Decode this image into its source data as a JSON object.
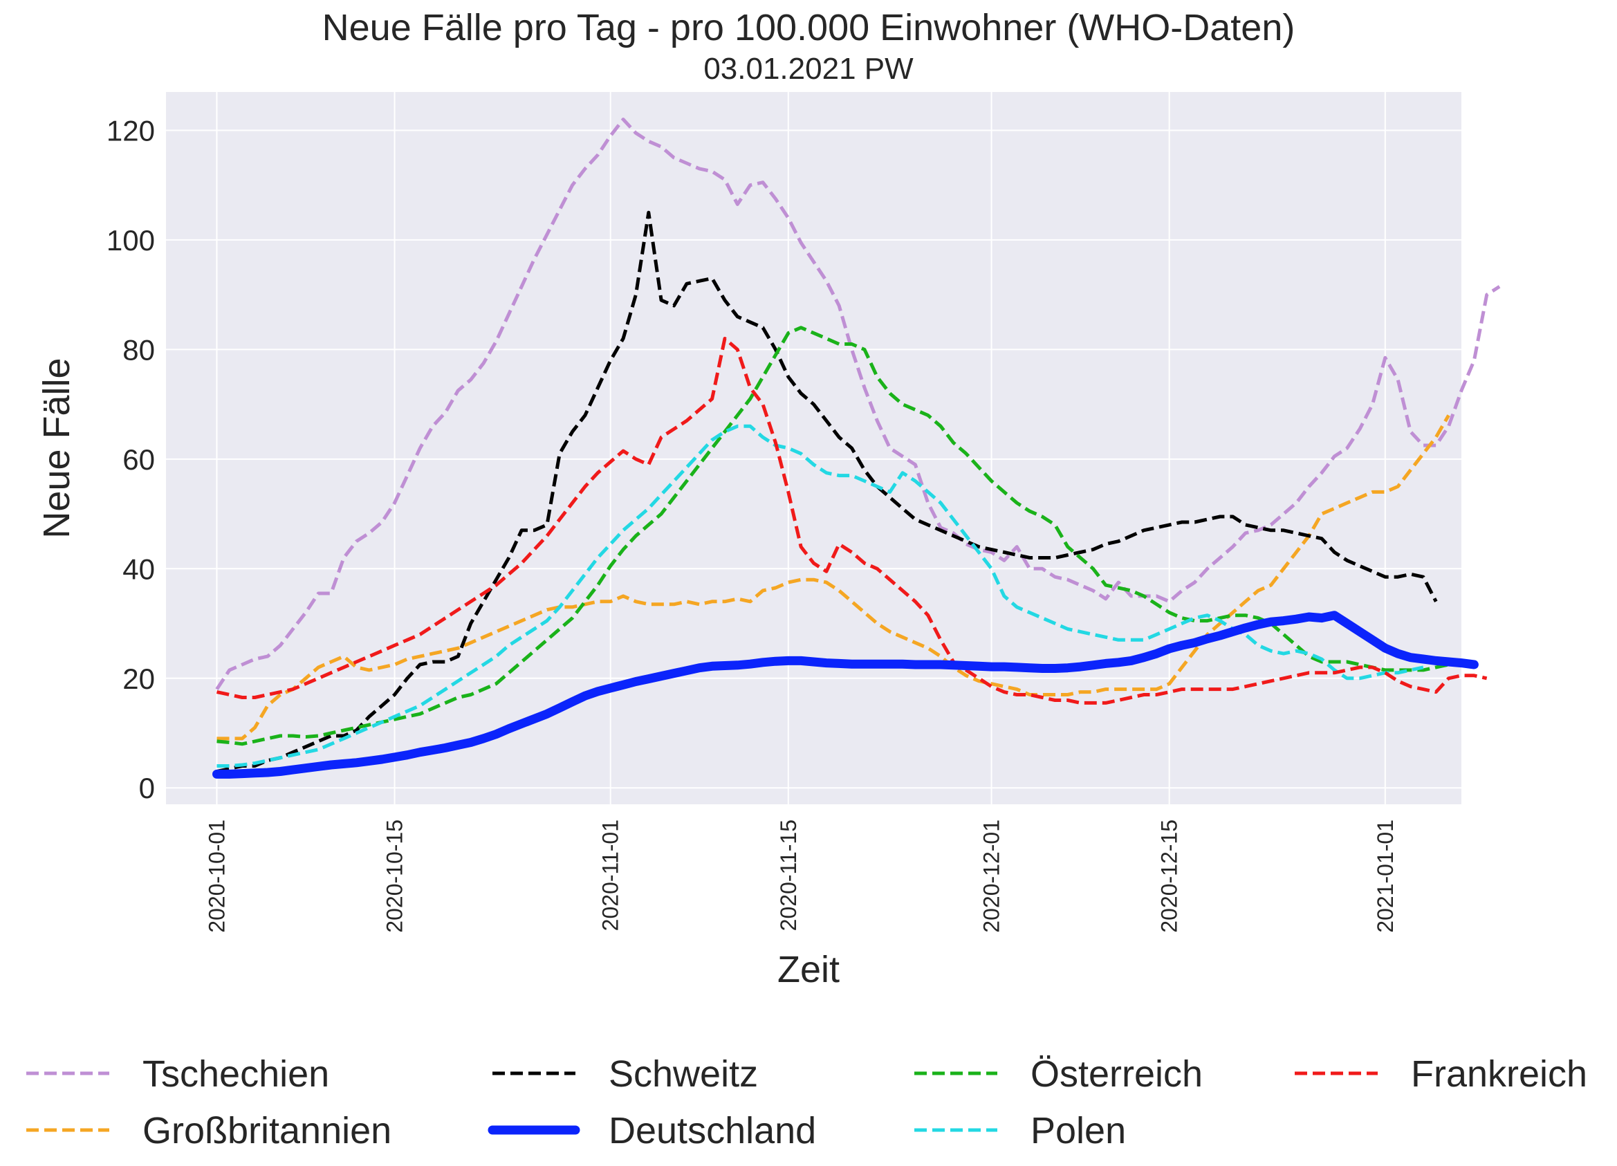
{
  "chart_data": {
    "type": "line",
    "title": "Neue Fälle pro Tag - pro 100.000 Einwohner (WHO-Daten)",
    "subtitle": "03.01.2021 PW",
    "xlabel": "Zeit",
    "ylabel": "Neue Fälle",
    "x_start": "2020-10-01",
    "x_step_days": 1,
    "xlim": [
      "2020-09-27",
      "2021-01-07"
    ],
    "ylim": [
      -3,
      127
    ],
    "x_ticks": [
      "2020-10-01",
      "2020-10-15",
      "2020-11-01",
      "2020-11-15",
      "2020-12-01",
      "2020-12-15",
      "2021-01-01"
    ],
    "y_ticks": [
      "0",
      "20",
      "40",
      "60",
      "80",
      "100",
      "120"
    ],
    "grid": true,
    "legend_position": "bottom",
    "series": [
      {
        "name": "Tschechien",
        "color": "#bf8fd4",
        "dash": true,
        "width": 5,
        "values": [
          18,
          21.5,
          22.5,
          23.5,
          24,
          26,
          29,
          32,
          35.5,
          35.5,
          42,
          45,
          46.5,
          48.5,
          52,
          57,
          62,
          66,
          68.5,
          72.5,
          74.5,
          77.5,
          81.5,
          86.5,
          91.5,
          96.5,
          101,
          105.5,
          110,
          113,
          115.5,
          119,
          122,
          119.5,
          118,
          117,
          115,
          114,
          113,
          112.5,
          111,
          106.5,
          110,
          110.5,
          107.5,
          104,
          99.5,
          96,
          92.5,
          88,
          80,
          73,
          67,
          62,
          60.5,
          59,
          52,
          47.5,
          46.5,
          44.5,
          43.5,
          43,
          41.5,
          44,
          40,
          40,
          38.5,
          38,
          37,
          36,
          34.5,
          37.5,
          35,
          35,
          35,
          34,
          36,
          37.5,
          40,
          42,
          44,
          46.5,
          47,
          48,
          50,
          52,
          55,
          57.5,
          60.5,
          62,
          65.5,
          70,
          78.5,
          74.5,
          65,
          62.5,
          62.5,
          66,
          72.5,
          78,
          90,
          91.5
        ]
      },
      {
        "name": "Großbritannien",
        "color": "#f5a623",
        "dash": true,
        "width": 5,
        "values": [
          9,
          9,
          9,
          11,
          15,
          17,
          18,
          20,
          22,
          23,
          24,
          22,
          21.5,
          22,
          22.5,
          23.5,
          24,
          24.5,
          25,
          25.5,
          26.5,
          27.5,
          28.5,
          29.5,
          30.5,
          31.5,
          32.5,
          33,
          33,
          33.5,
          34,
          34,
          35,
          34,
          33.5,
          33.5,
          33.5,
          34,
          33.5,
          34,
          34,
          34.5,
          34,
          36,
          36.5,
          37.5,
          38,
          38,
          37.5,
          36,
          34,
          32,
          30,
          28.5,
          27.5,
          26.5,
          25.5,
          24,
          22,
          20.5,
          19.5,
          19,
          18.5,
          18,
          17,
          17,
          17,
          17,
          17.5,
          17.5,
          18,
          18,
          18,
          18,
          18,
          19,
          22,
          25,
          28,
          30,
          32,
          34,
          36,
          37,
          40,
          43,
          46,
          50,
          51,
          52,
          53,
          54,
          54,
          55,
          58,
          61,
          64,
          68
        ]
      },
      {
        "name": "Schweitz",
        "color": "#000000",
        "dash": true,
        "width": 5,
        "values": [
          3,
          3.5,
          4,
          4,
          5,
          5.5,
          6.5,
          7.5,
          8.5,
          9.5,
          9.5,
          10.5,
          13,
          15,
          17,
          20,
          22.5,
          23,
          23,
          24,
          30,
          34,
          38,
          42,
          47,
          47,
          48,
          61,
          65,
          68,
          73,
          78,
          82,
          90,
          105,
          89,
          88,
          92,
          92.5,
          93,
          89,
          86,
          85,
          84,
          80,
          75,
          72,
          70,
          67,
          64,
          62,
          58,
          55,
          53,
          51,
          49,
          48,
          47,
          46,
          45,
          44,
          43.5,
          43,
          42.5,
          42,
          42,
          42,
          42.5,
          43,
          43.5,
          44.5,
          45,
          46,
          47,
          47.5,
          48,
          48.5,
          48.5,
          49,
          49.5,
          49.5,
          48,
          47.5,
          47,
          47,
          46.5,
          46,
          45.5,
          43,
          41.5,
          40.5,
          39.5,
          38.5,
          38.5,
          39,
          38.5,
          34
        ]
      },
      {
        "name": "Deutschland",
        "color": "#0b24fb",
        "dash": false,
        "width": 13,
        "values": [
          2.5,
          2.5,
          2.6,
          2.7,
          2.8,
          3,
          3.3,
          3.6,
          3.9,
          4.2,
          4.4,
          4.6,
          4.9,
          5.2,
          5.6,
          6,
          6.5,
          6.9,
          7.3,
          7.8,
          8.3,
          9,
          9.8,
          10.8,
          11.7,
          12.6,
          13.5,
          14.6,
          15.7,
          16.8,
          17.6,
          18.2,
          18.8,
          19.4,
          19.9,
          20.4,
          20.9,
          21.4,
          21.9,
          22.2,
          22.3,
          22.4,
          22.6,
          22.9,
          23.1,
          23.2,
          23.2,
          23,
          22.8,
          22.7,
          22.6,
          22.6,
          22.6,
          22.6,
          22.6,
          22.5,
          22.5,
          22.5,
          22.4,
          22.3,
          22.2,
          22.1,
          22.1,
          22,
          21.9,
          21.8,
          21.8,
          21.9,
          22.1,
          22.4,
          22.7,
          22.9,
          23.2,
          23.8,
          24.5,
          25.4,
          26,
          26.5,
          27.2,
          27.8,
          28.5,
          29.2,
          29.8,
          30.3,
          30.5,
          30.8,
          31.2,
          31,
          31.5,
          30,
          28.5,
          27,
          25.5,
          24.5,
          23.8,
          23.5,
          23.2,
          23,
          22.8,
          22.5
        ]
      },
      {
        "name": "Österreich",
        "color": "#1ab21a",
        "dash": true,
        "width": 5,
        "values": [
          8.5,
          8.3,
          8,
          8.5,
          9,
          9.5,
          9.5,
          9.3,
          9.5,
          10,
          10.5,
          11,
          11.5,
          12,
          12.5,
          13,
          13.5,
          14.5,
          15.5,
          16.5,
          17,
          18,
          19,
          21,
          23,
          25,
          27,
          29,
          31,
          34,
          37,
          40.5,
          43.5,
          46,
          48,
          50,
          53,
          56,
          59,
          62,
          65,
          68,
          71,
          75,
          79,
          83,
          84,
          83,
          82,
          81,
          81,
          80,
          75,
          72,
          70,
          69,
          68,
          66,
          63,
          61,
          58.5,
          56,
          54,
          52,
          50.5,
          49.5,
          48,
          44,
          42,
          40,
          37,
          36.5,
          36,
          35,
          33.5,
          32,
          31,
          30.5,
          30.5,
          31,
          31.5,
          31.5,
          31,
          30,
          28,
          26,
          24,
          23,
          23,
          23,
          22.5,
          22,
          21.5,
          21.5,
          21.5,
          21.5,
          22,
          22.5,
          22.5
        ]
      },
      {
        "name": "Polen",
        "color": "#23d8e3",
        "dash": true,
        "width": 5,
        "values": [
          4,
          4,
          4.2,
          4.5,
          5,
          5.5,
          6,
          6.5,
          7,
          8,
          9,
          10,
          11,
          12,
          13,
          14,
          15,
          16.5,
          18,
          19.5,
          21,
          22.5,
          24,
          26,
          27.5,
          29,
          30.5,
          33,
          36,
          39,
          42,
          44.5,
          47,
          49,
          51,
          53.5,
          56,
          58.5,
          61,
          63.5,
          65,
          66,
          66,
          64,
          62.5,
          62,
          61,
          59,
          57.5,
          57,
          57,
          56,
          55,
          54,
          57.5,
          56,
          54,
          52,
          49,
          46,
          43,
          40,
          35,
          33,
          32,
          31,
          30,
          29,
          28.5,
          28,
          27.5,
          27,
          27,
          27,
          28,
          29,
          30,
          31,
          31.5,
          30.5,
          29,
          28,
          26,
          25,
          24.5,
          25,
          24.5,
          23.5,
          21.5,
          20,
          20,
          20.5,
          21,
          21,
          21.5,
          22
        ]
      },
      {
        "name": "Frankreich",
        "color": "#f01a1a",
        "dash": true,
        "width": 5,
        "values": [
          17.5,
          17,
          16.5,
          16.5,
          17,
          17.5,
          18,
          19,
          20,
          21,
          22,
          23,
          24,
          25,
          26,
          27,
          28,
          29.5,
          31,
          32.5,
          34,
          35.5,
          37,
          39,
          41,
          43.5,
          46,
          49,
          52,
          55,
          57.5,
          59.5,
          61.5,
          60,
          59,
          64,
          65.5,
          67,
          69,
          71,
          82,
          80,
          73,
          70,
          63,
          54,
          44,
          41,
          39.5,
          44.5,
          43,
          41,
          40,
          38,
          36,
          34,
          31.5,
          27,
          23,
          21.5,
          20,
          18.5,
          17.5,
          17,
          17,
          16.5,
          16,
          16,
          15.5,
          15.5,
          15.5,
          16,
          16.5,
          17,
          17,
          17.5,
          18,
          18,
          18,
          18,
          18,
          18.5,
          19,
          19.5,
          20,
          20.5,
          21,
          21,
          21,
          21.5,
          22,
          22,
          21,
          19.5,
          18.5,
          18,
          17.5,
          20,
          20.5,
          20.5,
          20
        ]
      }
    ],
    "legend": [
      {
        "name": "Tschechien",
        "color": "#bf8fd4",
        "dash": true
      },
      {
        "name": "Schweitz",
        "color": "#000000",
        "dash": true
      },
      {
        "name": "Österreich",
        "color": "#1ab21a",
        "dash": true
      },
      {
        "name": "Frankreich",
        "color": "#f01a1a",
        "dash": true
      },
      {
        "name": "Großbritannien",
        "color": "#f5a623",
        "dash": true
      },
      {
        "name": "Deutschland",
        "color": "#0b24fb",
        "dash": false
      },
      {
        "name": "Polen",
        "color": "#23d8e3",
        "dash": true
      }
    ]
  }
}
